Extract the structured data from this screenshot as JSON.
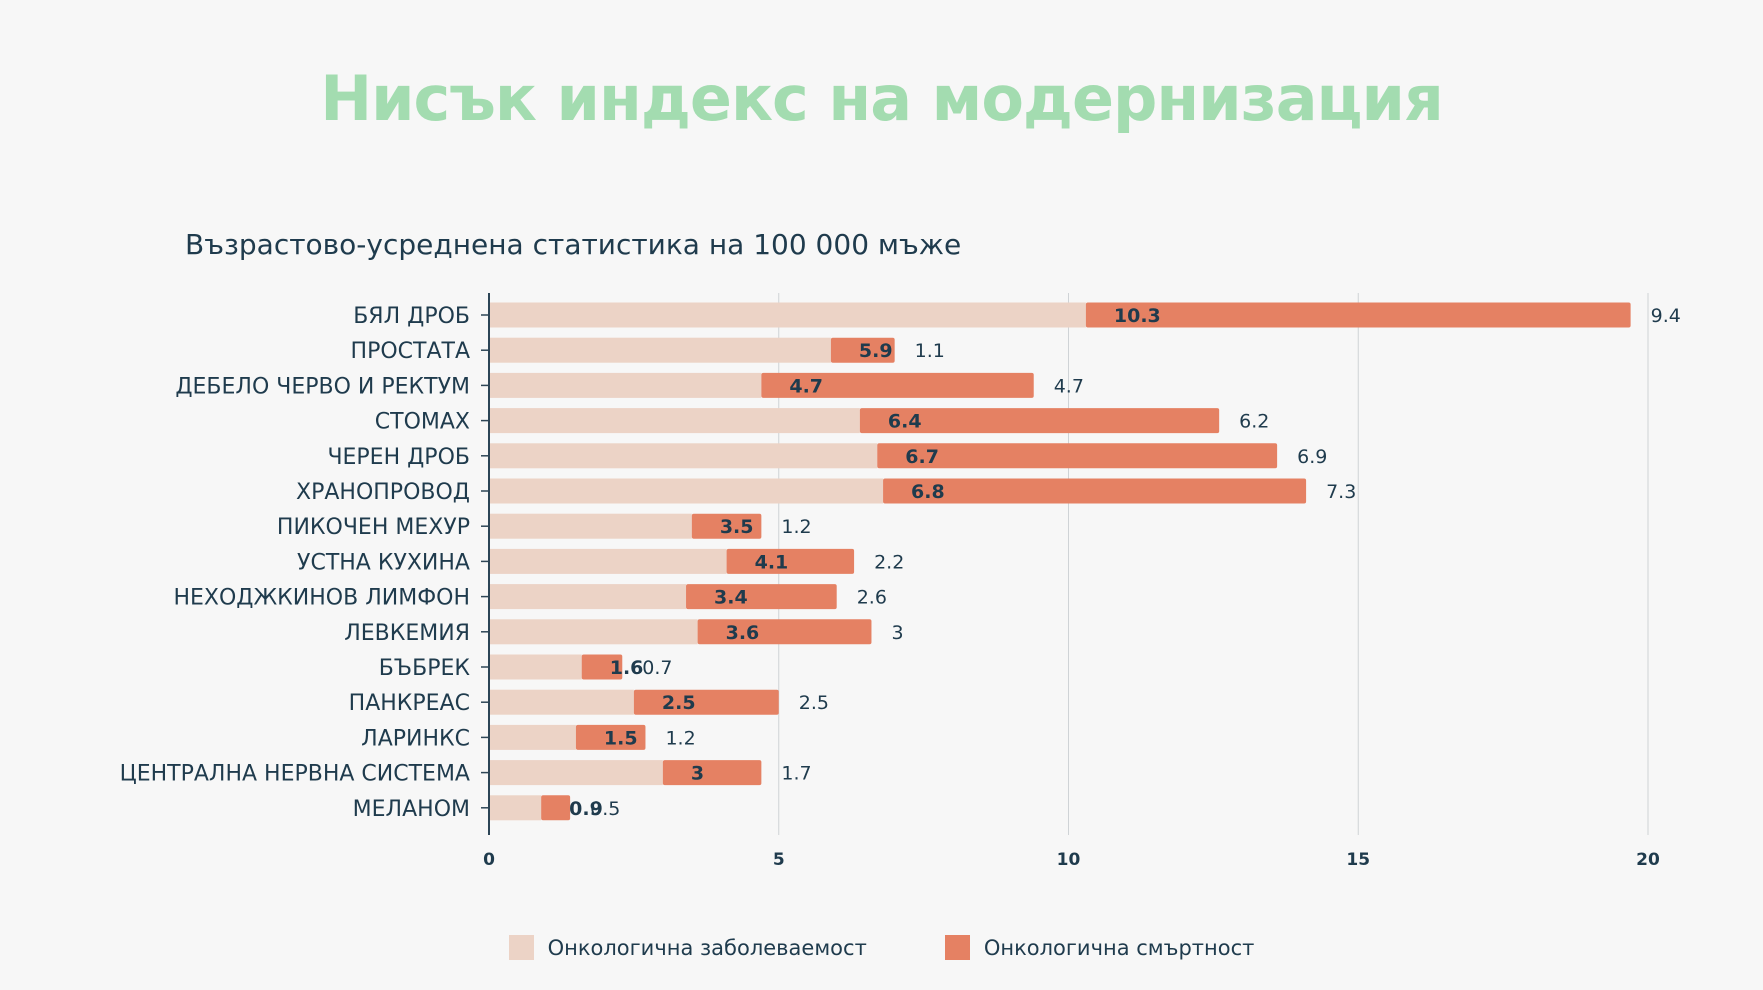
{
  "title": "Нисък индекс на модернизация",
  "chart_data": {
    "type": "bar",
    "orientation": "horizontal",
    "stacked": true,
    "subtitle": "Възрастово-усреднена статистика на 100 000 мъже",
    "categories": [
      "БЯЛ ДРОБ",
      "ПРОСТАТА",
      "ДЕБЕЛО ЧЕРВО И РЕКТУМ",
      "СТОМАХ",
      "ЧЕРЕН ДРОБ",
      "ХРАНОПРОВОД",
      "ПИКОЧЕН МЕХУР",
      "УСТНА КУХИНА",
      "НЕХОДЖКИНОВ ЛИМФОН",
      "ЛЕВКЕМИЯ",
      "БЪБРЕК",
      "ПАНКРЕАС",
      "ЛАРИНКС",
      "ЦЕНТРАЛНА НЕРВНА СИСТЕМА",
      "МЕЛАНОМ"
    ],
    "series": [
      {
        "name": "Онкологична заболеваемост",
        "color": "#ecd3c6",
        "values": [
          10.3,
          5.9,
          4.7,
          6.4,
          6.7,
          6.8,
          3.5,
          4.1,
          3.4,
          3.6,
          1.6,
          2.5,
          1.5,
          3,
          0.9
        ]
      },
      {
        "name": "Онкологична смъртност",
        "color": "#e58163",
        "values": [
          9.4,
          1.1,
          4.7,
          6.2,
          6.9,
          7.3,
          1.2,
          2.2,
          2.6,
          3,
          0.7,
          2.5,
          1.2,
          1.7,
          0.5
        ]
      }
    ],
    "xlim": [
      0,
      20
    ],
    "xticks": [
      0,
      5,
      10,
      15,
      20
    ],
    "grid": "vertical",
    "legend": "bottom"
  }
}
